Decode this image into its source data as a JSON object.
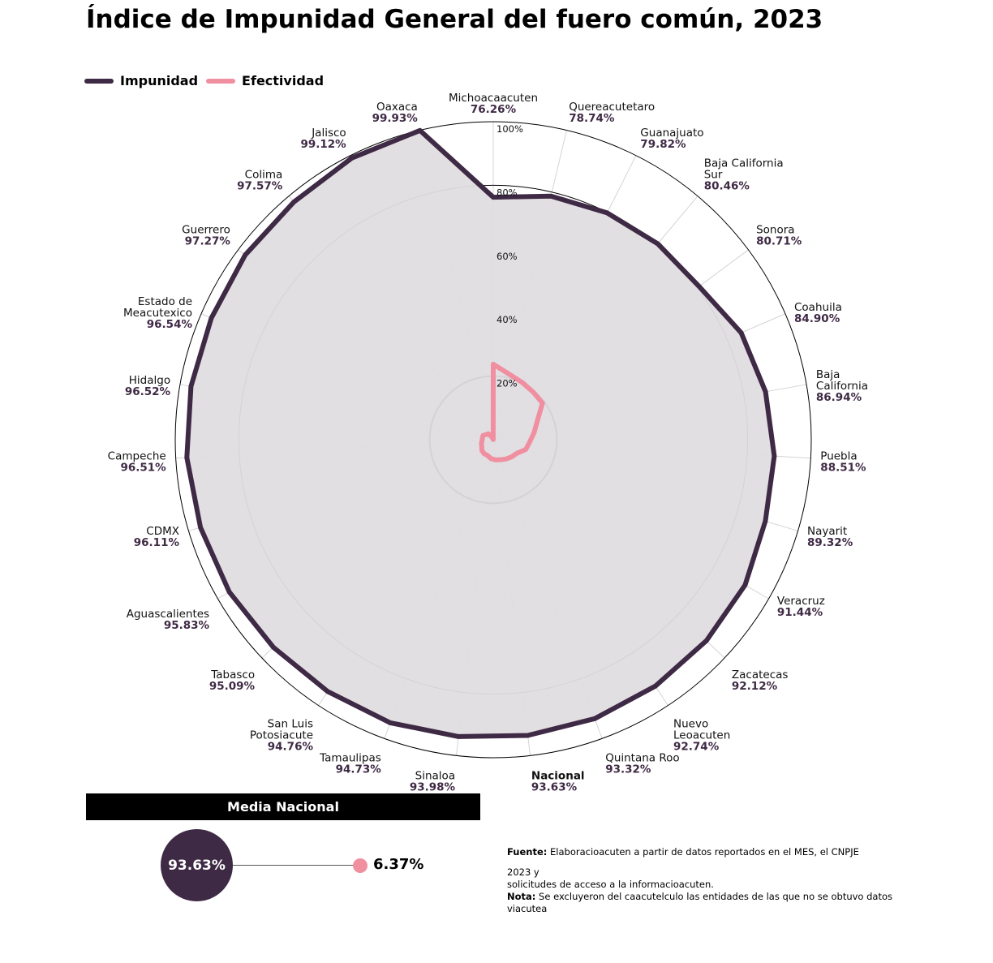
{
  "title": "Índice de Impunidad General del fuero común, 2023",
  "colors": {
    "impunidad": "#3f2a45",
    "efectividad": "#f08fa0",
    "fill": "#e0dde1"
  },
  "chart_data": {
    "type": "radar",
    "title": "Índice de Impunidad General del fuero común, 2023",
    "rlim": [
      0,
      100
    ],
    "radial_ticks": [
      "20%",
      "40%",
      "60%",
      "80%",
      "100%"
    ],
    "legend": {
      "placement": "top-left",
      "entries": [
        "Impunidad",
        "Efectividad"
      ]
    },
    "categories": [
      "Michoacaacuten",
      "Quereacutetaro",
      "Guanajuato",
      "Baja California Sur",
      "Sonora",
      "Coahuila",
      "Baja California",
      "Puebla",
      "Nayarit",
      "Veracruz",
      "Zacatecas",
      "Nuevo Leoacuten",
      "Quintana Roo",
      "Nacional",
      "Sinaloa",
      "Tamaulipas",
      "San Luis Potosiacute",
      "Tabasco",
      "Aguascalientes",
      "CDMX",
      "Campeche",
      "Hidalgo",
      "Estado de Meacutexico",
      "Guerrero",
      "Colima",
      "Jalisco",
      "Oaxaca"
    ],
    "category_lines": [
      [
        "Michoacaacuten"
      ],
      [
        "Quereacutetaro"
      ],
      [
        "Guanajuato"
      ],
      [
        "Baja California",
        "Sur"
      ],
      [
        "Sonora"
      ],
      [
        "Coahuila"
      ],
      [
        "Baja",
        "California"
      ],
      [
        "Puebla"
      ],
      [
        "Nayarit"
      ],
      [
        "Veracruz"
      ],
      [
        "Zacatecas"
      ],
      [
        "Nuevo",
        "Leoacuten"
      ],
      [
        "Quintana Roo"
      ],
      [
        "Nacional"
      ],
      [
        "Sinaloa"
      ],
      [
        "Tamaulipas"
      ],
      [
        "San Luis",
        "Potosiacute"
      ],
      [
        "Tabasco"
      ],
      [
        "Aguascalientes"
      ],
      [
        "CDMX"
      ],
      [
        "Campeche"
      ],
      [
        "Hidalgo"
      ],
      [
        "Estado de",
        "Meacutexico"
      ],
      [
        "Guerrero"
      ],
      [
        "Colima"
      ],
      [
        "Jalisco"
      ],
      [
        "Oaxaca"
      ]
    ],
    "value_labels": [
      "76.26%",
      "78.74%",
      "79.82%",
      "80.46%",
      "80.71%",
      "84.90%",
      "86.94%",
      "88.51%",
      "89.32%",
      "91.44%",
      "92.12%",
      "92.74%",
      "93.32%",
      "93.63%",
      "93.98%",
      "94.73%",
      "94.76%",
      "95.09%",
      "95.83%",
      "96.11%",
      "96.51%",
      "96.52%",
      "96.54%",
      "97.27%",
      "97.57%",
      "99.12%",
      "99.93%"
    ],
    "series": [
      {
        "name": "Impunidad",
        "values": [
          76.26,
          78.74,
          79.82,
          80.46,
          80.71,
          84.9,
          86.94,
          88.51,
          89.32,
          91.44,
          92.12,
          92.74,
          93.32,
          93.63,
          93.98,
          94.73,
          94.76,
          95.09,
          95.83,
          96.11,
          96.51,
          96.52,
          96.54,
          97.27,
          97.57,
          99.12,
          99.93
        ]
      },
      {
        "name": "Efectividad",
        "values": [
          23.74,
          21.26,
          20.18,
          19.54,
          19.29,
          15.1,
          13.06,
          11.49,
          10.68,
          8.56,
          7.88,
          7.26,
          6.68,
          6.37,
          6.02,
          5.27,
          5.24,
          4.91,
          4.17,
          3.89,
          3.49,
          3.48,
          3.46,
          2.73,
          2.43,
          0.88,
          0.07
        ]
      }
    ]
  },
  "media": {
    "header": "Media Nacional",
    "impunidad_label": "93.63%",
    "efectividad_label": "6.37%"
  },
  "notes": {
    "fuente_label": "Fuente:",
    "fuente_text": " Elaboracioacuten a partir de datos reportados en el MES, el CNPJE",
    "fuente_year": "2023 y",
    "fuente_cont": "solicitudes de acceso a la informacioacuten.",
    "nota_label": "Nota:",
    "nota_text": " Se excluyeron del caacutelculo las entidades de las que no se obtuvo datos viacutea"
  }
}
